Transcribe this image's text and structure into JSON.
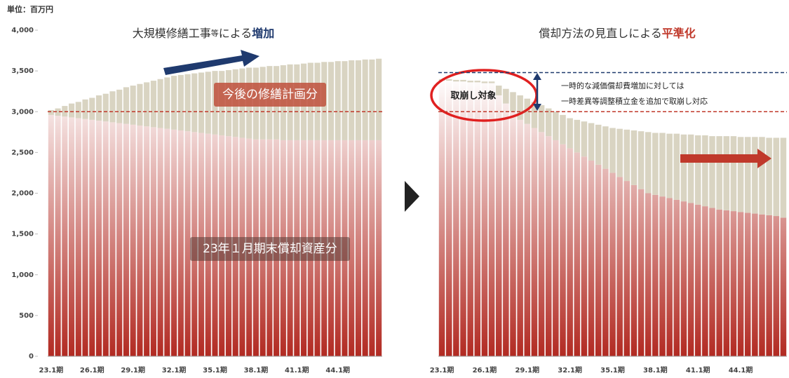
{
  "unit": "単位：百万円",
  "chart_data": [
    {
      "type": "stacked-bar",
      "title_parts": [
        "大規模修繕工事",
        "等",
        "による",
        "増加"
      ],
      "categories": [
        "23.1期",
        null,
        null,
        null,
        null,
        null,
        "26.1期",
        null,
        null,
        null,
        null,
        null,
        "29.1期",
        null,
        null,
        null,
        null,
        null,
        "32.1期",
        null,
        null,
        null,
        null,
        null,
        "35.1期",
        null,
        null,
        null,
        null,
        null,
        "38.1期",
        null,
        null,
        null,
        null,
        null,
        "41.1期",
        null,
        null,
        null,
        null,
        null,
        "44.1期",
        null,
        null,
        null,
        null,
        null,
        null
      ],
      "series": [
        {
          "name": "23年１月期末償却資産分",
          "color": "#b22a22",
          "values": [
            2960,
            2950,
            2940,
            2930,
            2920,
            2910,
            2900,
            2890,
            2880,
            2870,
            2860,
            2850,
            2840,
            2830,
            2820,
            2810,
            2800,
            2790,
            2780,
            2770,
            2760,
            2750,
            2740,
            2730,
            2720,
            2710,
            2700,
            2690,
            2680,
            2670,
            2660,
            2660,
            2660,
            2660,
            2650,
            2650,
            2650,
            2650,
            2650,
            2650,
            2650,
            2650,
            2650,
            2650,
            2650,
            2650,
            2650,
            2650,
            2650
          ]
        },
        {
          "name": "今後の修繕計画分",
          "color": "#d9d4c2",
          "values": [
            60,
            90,
            130,
            170,
            200,
            240,
            270,
            310,
            340,
            380,
            410,
            450,
            480,
            510,
            540,
            570,
            600,
            630,
            660,
            680,
            700,
            720,
            740,
            760,
            780,
            790,
            810,
            830,
            850,
            870,
            880,
            890,
            900,
            900,
            920,
            930,
            930,
            940,
            950,
            950,
            960,
            960,
            970,
            970,
            980,
            980,
            990,
            990,
            1000
          ]
        }
      ],
      "ylim": [
        0,
        4000
      ],
      "yticks": [
        0,
        500,
        {
          "value": 1000,
          "label": "1,000"
        },
        {
          "value": 1500,
          "label": "1,500"
        },
        {
          "value": 2000,
          "label": "2,000"
        },
        {
          "value": 2500,
          "label": "2,500"
        },
        {
          "value": 3000,
          "label": "3,000"
        },
        {
          "value": 3500,
          "label": "3,500"
        },
        {
          "value": 4000,
          "label": "4,000"
        }
      ],
      "ref_lines": [
        {
          "value": 3000,
          "color": "#c0392b"
        }
      ]
    },
    {
      "type": "stacked-bar",
      "title_parts": [
        "償却方法の見直しによる",
        "平準化"
      ],
      "categories": [
        "23.1期",
        null,
        null,
        null,
        null,
        null,
        "26.1期",
        null,
        null,
        null,
        null,
        null,
        "29.1期",
        null,
        null,
        null,
        null,
        null,
        "32.1期",
        null,
        null,
        null,
        null,
        null,
        "35.1期",
        null,
        null,
        null,
        null,
        null,
        "38.1期",
        null,
        null,
        null,
        null,
        null,
        "41.1期",
        null,
        null,
        null,
        null,
        null,
        "44.1期",
        null,
        null,
        null,
        null,
        null,
        null
      ],
      "series": [
        {
          "color": "#b22a22",
          "values": [
            3380,
            3380,
            3370,
            3370,
            3360,
            3360,
            3350,
            3350,
            3200,
            3100,
            3000,
            2900,
            2850,
            2800,
            2750,
            2700,
            2650,
            2600,
            2550,
            2500,
            2450,
            2400,
            2350,
            2300,
            2250,
            2200,
            2150,
            2100,
            2050,
            2000,
            1980,
            1960,
            1940,
            1920,
            1900,
            1880,
            1860,
            1840,
            1820,
            1800,
            1790,
            1780,
            1770,
            1760,
            1750,
            1740,
            1730,
            1720,
            1700
          ]
        },
        {
          "color": "#d9d4c2",
          "values": [
            20,
            20,
            20,
            20,
            20,
            20,
            20,
            20,
            120,
            180,
            240,
            300,
            310,
            320,
            330,
            340,
            350,
            360,
            370,
            400,
            430,
            460,
            490,
            520,
            550,
            590,
            630,
            670,
            710,
            750,
            760,
            780,
            790,
            810,
            820,
            840,
            850,
            870,
            880,
            900,
            910,
            920,
            920,
            930,
            940,
            950,
            950,
            960,
            980
          ]
        }
      ],
      "ylim": [
        0,
        4000
      ],
      "ref_lines": [
        {
          "value": 3000,
          "color": "#c0392b"
        },
        {
          "value": 3480,
          "color": "#1f3a6e"
        }
      ],
      "annotations": [
        "取崩し対象",
        "一時的な減価償却費増加に対しては",
        "一時差異等調整積立金を追加で取崩し対応"
      ]
    }
  ]
}
